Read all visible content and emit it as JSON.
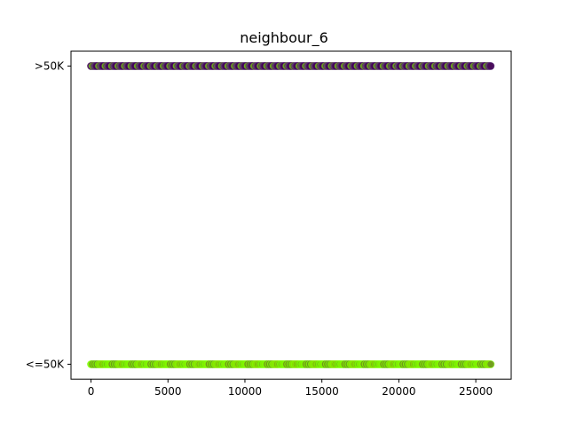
{
  "chart_data": {
    "type": "scatter",
    "title": "neighbour_6",
    "xlabel": "",
    "ylabel": "",
    "xlim": [
      -1300,
      27300
    ],
    "ylim": [
      -0.05,
      1.05
    ],
    "x_ticks": [
      0,
      5000,
      10000,
      15000,
      20000,
      25000
    ],
    "x_tick_labels": [
      "0",
      "5000",
      "10000",
      "15000",
      "20000",
      "25000"
    ],
    "y_ticks": [
      0,
      1
    ],
    "y_tick_labels": [
      "<=50K",
      ">50K"
    ],
    "grid": false,
    "legend": "none",
    "x_range": [
      0,
      26000
    ],
    "series": [
      {
        "y": 1,
        "category": ">50K",
        "marker": "o",
        "colors": [
          "#440154",
          "#5b2a7c",
          "#6b8e23",
          "#7cfc00"
        ],
        "dominant_color": "#4b1d6b"
      },
      {
        "y": 0,
        "category": "<=50K",
        "marker": "o",
        "colors": [
          "#7cfc00",
          "#8fd400",
          "#6b8e23"
        ],
        "dominant_color": "#7cfc00"
      }
    ]
  }
}
